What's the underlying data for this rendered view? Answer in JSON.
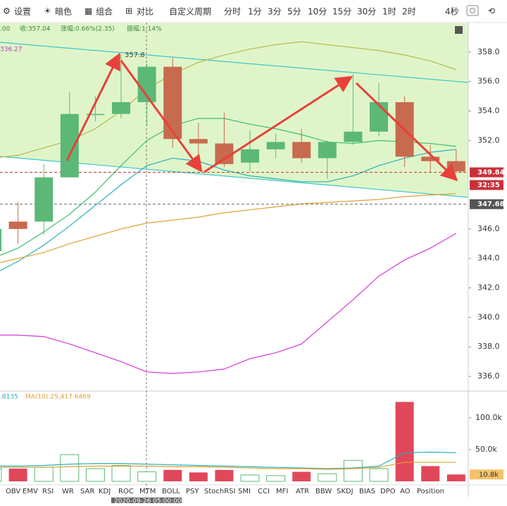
{
  "toolbar": {
    "items": [
      "设置",
      "暗色",
      "组合",
      "对比"
    ],
    "period_label": "自定义周期",
    "periods": [
      "分时",
      "1分",
      "3分",
      "5分",
      "10分",
      "15分",
      "30分",
      "1时",
      "2时"
    ],
    "active_period_index": 7,
    "right_text": "4秒"
  },
  "info": {
    "open_partial": ".00",
    "close": "收:357.04",
    "change": "涨幅:0.66%(2.35)",
    "amplitude": "振幅:1.14%"
  },
  "chart_data": {
    "type": "candlestick",
    "open": [
      344.5,
      346.5,
      346.5,
      349.5,
      353.8,
      353.8,
      354.6,
      357.0,
      352.1,
      351.8,
      350.5,
      351.4,
      351.9,
      350.8,
      351.9,
      352.6,
      354.6,
      350.9,
      350.6
    ],
    "high": [
      346.4,
      347.8,
      350.4,
      355.3,
      355.0,
      357.8,
      357.2,
      357.6,
      353.2,
      353.9,
      352.7,
      352.5,
      352.8,
      352.0,
      356.5,
      355.9,
      355.0,
      351.7,
      351.4
    ],
    "low": [
      344.0,
      345.0,
      345.6,
      349.5,
      353.3,
      353.5,
      353.0,
      351.5,
      350.0,
      350.2,
      349.9,
      350.8,
      350.5,
      349.4,
      351.7,
      352.3,
      350.2,
      349.8,
      349.8
    ],
    "close": [
      346.0,
      346.0,
      349.5,
      353.8,
      353.8,
      354.6,
      357.0,
      352.1,
      351.8,
      350.4,
      351.4,
      351.9,
      350.8,
      351.9,
      352.6,
      354.6,
      350.9,
      350.6,
      349.9
    ],
    "up_color": "#5cb877",
    "down_color": "#c86a4e",
    "ylim": [
      335,
      360
    ],
    "yticks": [
      {
        "value": 336,
        "label": "336.0"
      },
      {
        "value": 338,
        "label": "338.0"
      },
      {
        "value": 340,
        "label": "340.0"
      },
      {
        "value": 342,
        "label": "342.0"
      },
      {
        "value": 344,
        "label": "344.0"
      },
      {
        "value": 346,
        "label": "346.0"
      },
      {
        "value": 352,
        "label": "352.0"
      },
      {
        "value": 354,
        "label": "354.0"
      },
      {
        "value": 356,
        "label": "356.0"
      },
      {
        "value": 358,
        "label": "358.0"
      }
    ],
    "series": [
      {
        "color": "#b8b84a",
        "values": [
          350.8,
          351.0,
          351.5,
          352.0,
          352.8,
          354.0,
          355.5,
          356.5,
          357.3,
          357.8,
          358.2,
          358.5,
          358.7,
          358.5,
          358.3,
          358.1,
          357.8,
          357.4,
          356.8
        ]
      },
      {
        "color": "#3cbf6e",
        "values": [
          344.0,
          344.7,
          345.8,
          347.0,
          348.5,
          350.3,
          352.0,
          353.0,
          353.5,
          353.5,
          353.1,
          352.8,
          352.4,
          351.9,
          351.8,
          352.0,
          351.9,
          351.8,
          351.6
        ]
      },
      {
        "color": "#2ab0b8",
        "values": [
          342.9,
          343.8,
          344.9,
          346.2,
          347.6,
          349.0,
          350.3,
          350.8,
          350.6,
          350.0,
          349.6,
          349.4,
          349.2,
          349.2,
          349.6,
          350.3,
          350.8,
          351.2,
          351.4
        ]
      },
      {
        "color": "#e0a030",
        "values": [
          343.6,
          344.0,
          344.4,
          345.0,
          345.5,
          346.0,
          346.4,
          346.6,
          346.8,
          347.1,
          347.3,
          347.5,
          347.7,
          347.8,
          347.9,
          348.0,
          348.2,
          348.3,
          348.4
        ]
      },
      {
        "color": "#d33bd3",
        "values": [
          338.8,
          338.8,
          338.7,
          338.2,
          337.6,
          337.0,
          336.3,
          336.2,
          336.3,
          336.5,
          337.2,
          337.6,
          338.2,
          339.7,
          341.2,
          342.8,
          343.9,
          344.7,
          345.7
        ]
      }
    ],
    "indicator_label": 336.27,
    "annotation": 357.8,
    "price_lines": [
      349.84,
      347.68
    ],
    "countdown": "32:35",
    "date_label": "2020-09-26 05:00:00",
    "volume": {
      "values": [
        20000,
        20000,
        22000,
        42000,
        20000,
        25000,
        15000,
        18000,
        14000,
        18000,
        10000,
        9000,
        15000,
        12000,
        33000,
        20000,
        125000,
        24000,
        10800
      ],
      "ylim": [
        0,
        142000
      ],
      "yticks": [
        {
          "value": 50000,
          "label": "50.0k"
        },
        {
          "value": 100000,
          "label": "100.0k"
        }
      ],
      "ma_partial": ".8135",
      "ma_text": "MA(10):25,417.6469",
      "last_label": "10.8k",
      "series": [
        {
          "color": "#2ab0b8",
          "values": [
            24000,
            24000,
            25000,
            27000,
            28000,
            28000,
            27000,
            26000,
            25000,
            24000,
            23000,
            22000,
            21000,
            20000,
            21000,
            24000,
            45000,
            46000,
            45000
          ]
        },
        {
          "color": "#e0a030",
          "values": [
            22000,
            22000,
            22000,
            23000,
            24000,
            24000,
            24000,
            23000,
            23000,
            22000,
            21000,
            20000,
            20000,
            19000,
            20000,
            22000,
            30000,
            30000,
            30000
          ]
        }
      ]
    }
  },
  "tabs": [
    "OBV",
    "EMV",
    "RSI",
    "WR",
    "SAR",
    "KDJ",
    "ROC",
    "MTM",
    "BOLL",
    "PSY",
    "StochRSI",
    "SMI",
    "CCI",
    "MFI",
    "ATR",
    "BBW",
    "SKDJ",
    "BIAS",
    "DPO",
    "AO",
    "Position"
  ]
}
